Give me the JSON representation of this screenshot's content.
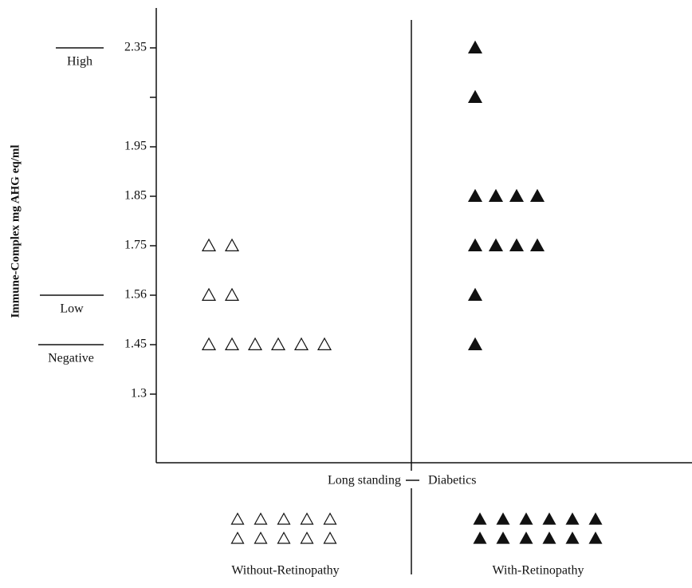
{
  "chart_data": {
    "type": "scatter",
    "y_label": "Immune-Complex mg AHG eq/ml",
    "x_label_left": "Long standing",
    "x_label_right": "Diabetics",
    "yticks": [
      2.35,
      {
        "value": 2.15,
        "label": null
      },
      1.95,
      1.85,
      1.75,
      1.56,
      1.45,
      1.3
    ],
    "reference_levels": [
      {
        "label": "High",
        "value": 2.35
      },
      {
        "label": "Low",
        "value": 1.56
      },
      {
        "label": "Negative",
        "value": 1.45
      }
    ],
    "series": [
      {
        "name": "Without-Retinopathy",
        "color": "#ffffff",
        "values": [
          1.75,
          1.75,
          1.56,
          1.56,
          1.45,
          1.45,
          1.45,
          1.45,
          1.45,
          1.45
        ]
      },
      {
        "name": "With-Retinopathy",
        "color": "#111111",
        "values": [
          2.35,
          2.15,
          1.85,
          1.85,
          1.85,
          1.85,
          1.75,
          1.75,
          1.75,
          1.75,
          1.56,
          1.45
        ]
      }
    ]
  }
}
